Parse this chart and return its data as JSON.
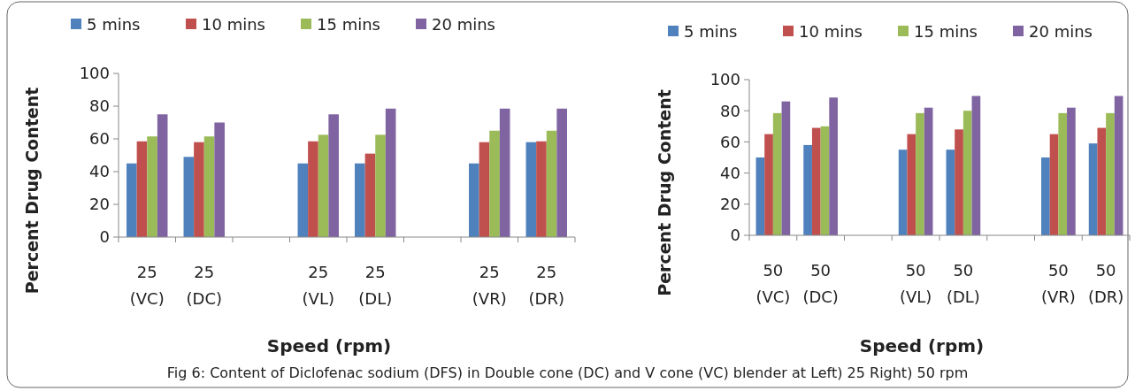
{
  "chart_data": [
    {
      "type": "bar",
      "xlabel": "Speed (rpm)",
      "ylabel": "Percent Drug Content",
      "categories": [
        "25 (VC)",
        "25 (DC)",
        null,
        "25 (VL)",
        "25 (DL)",
        null,
        "25 (VR)",
        "25 (DR)"
      ],
      "series": [
        {
          "name": "5 mins",
          "color": "#4f81bd",
          "values": [
            45,
            49,
            null,
            45,
            45,
            null,
            45,
            58
          ]
        },
        {
          "name": "10 mins",
          "color": "#c0504d",
          "values": [
            58.5,
            58,
            null,
            58.5,
            51,
            null,
            58,
            58.5
          ]
        },
        {
          "name": "15 mins",
          "color": "#9bbb59",
          "values": [
            61.5,
            61.5,
            null,
            62.5,
            62.5,
            null,
            65,
            65
          ]
        },
        {
          "name": "20 mins",
          "color": "#8064a2",
          "values": [
            75,
            70,
            null,
            75,
            78.5,
            null,
            78.5,
            78.5
          ]
        }
      ],
      "ylim": [
        0,
        100
      ],
      "yticks": [
        0,
        20,
        40,
        60,
        80,
        100
      ],
      "legend": "top",
      "grid": false,
      "annotations": [
        "Fig 6: Content of Diclofenac sodium (DFS) in Double cone (DC) and V cone (VC) blender at Left) 25 Right) 50 rpm"
      ]
    },
    {
      "type": "bar",
      "xlabel": "Speed (rpm)",
      "ylabel": "Percent Drug Content",
      "categories": [
        "50 (VC)",
        "50 (DC)",
        null,
        "50 (VL)",
        "50 (DL)",
        null,
        "50 (VR)",
        "50 (DR)"
      ],
      "series": [
        {
          "name": "5 mins",
          "color": "#4f81bd",
          "values": [
            50,
            58,
            null,
            55,
            55,
            null,
            50,
            59
          ]
        },
        {
          "name": "10 mins",
          "color": "#c0504d",
          "values": [
            65,
            69,
            null,
            65,
            68,
            null,
            65,
            69
          ]
        },
        {
          "name": "15 mins",
          "color": "#9bbb59",
          "values": [
            78.5,
            70,
            null,
            78.5,
            80,
            null,
            78.5,
            78.5
          ]
        },
        {
          "name": "20 mins",
          "color": "#8064a2",
          "values": [
            86,
            88.5,
            null,
            82,
            89.5,
            null,
            82,
            89.5
          ]
        }
      ],
      "ylim": [
        0,
        100
      ],
      "yticks": [
        0,
        20,
        40,
        60,
        80,
        100
      ],
      "legend": "top",
      "grid": false
    }
  ]
}
